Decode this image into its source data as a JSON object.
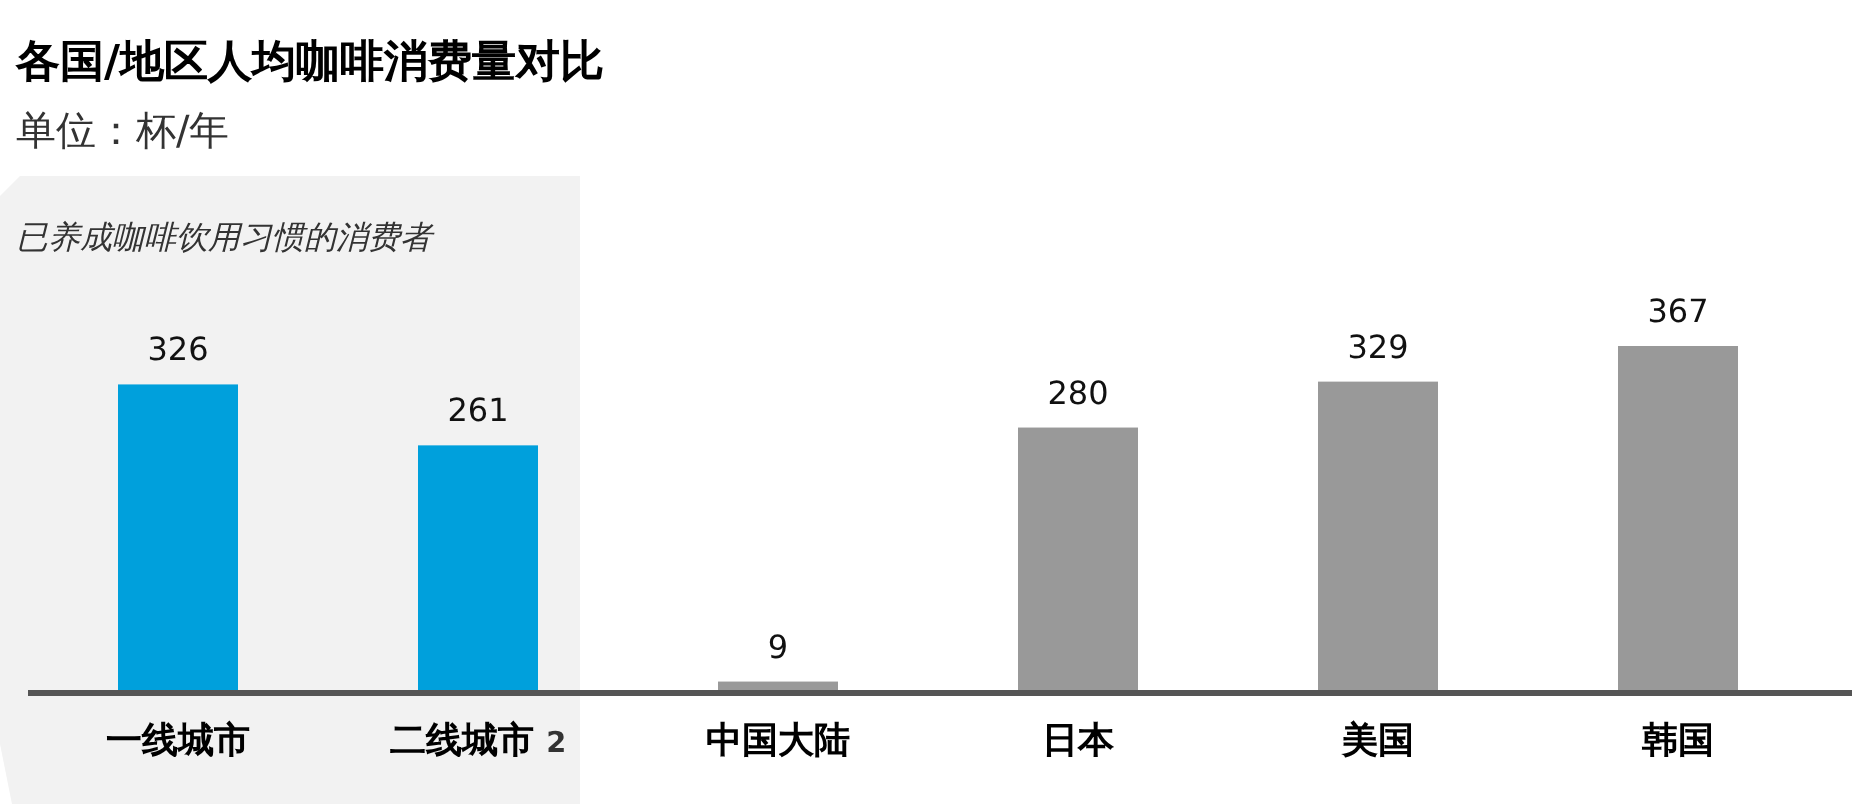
{
  "chart_data": {
    "type": "bar",
    "title": "各国/地区人均咖啡消费量对比",
    "subtitle": "单位：杯/年",
    "categories": [
      "一线城市",
      "二线城市 $^{2}$",
      "中国大陆",
      "日本",
      "美国",
      "韩国"
    ],
    "values": [
      326,
      261,
      9,
      280,
      329,
      367
    ],
    "colors": [
      "#00a0dc",
      "#00a0dc",
      "#999999",
      "#999999",
      "#999999",
      "#999999"
    ],
    "data_labels": true,
    "bands": [
      {
        "axis": "x",
        "from": "一线城市",
        "to": "二线城市 $^{2}$",
        "label": "已养成咖啡饮用习惯的消费者",
        "color": "#f2f2f2"
      }
    ]
  }
}
